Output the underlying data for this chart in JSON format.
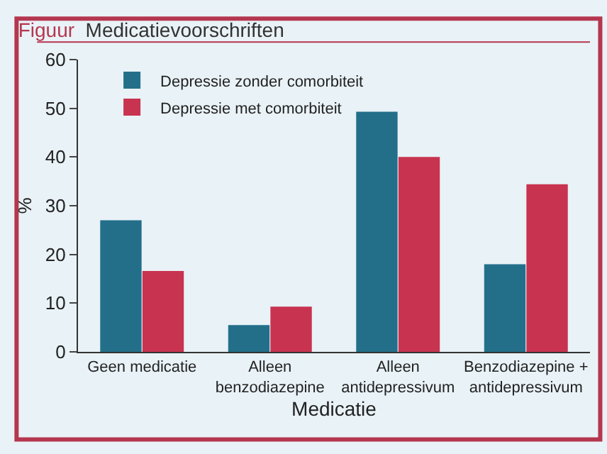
{
  "chart_data": {
    "type": "bar",
    "title": "Figuur Medicatievoorschriften",
    "xlabel": "Medicatie",
    "ylabel": "%",
    "categories": [
      "Geen medicatie",
      "Alleen\nbenzodiazepine",
      "Alleen\nantidepressivum",
      "Benzodiazepine +\nantidepressivum"
    ],
    "series": [
      {
        "name": "Depressie zonder comorbiteit",
        "color": "#236f8a",
        "values": [
          27,
          5.5,
          49.3,
          18
        ]
      },
      {
        "name": "Depressie met comorbiteit",
        "color": "#c8334f",
        "values": [
          16.6,
          9.3,
          40,
          34.4
        ]
      }
    ],
    "ylim": [
      0,
      60
    ],
    "yticks": [
      0,
      10,
      20,
      30,
      40,
      50,
      60
    ],
    "grid": false,
    "legend": "top left"
  }
}
